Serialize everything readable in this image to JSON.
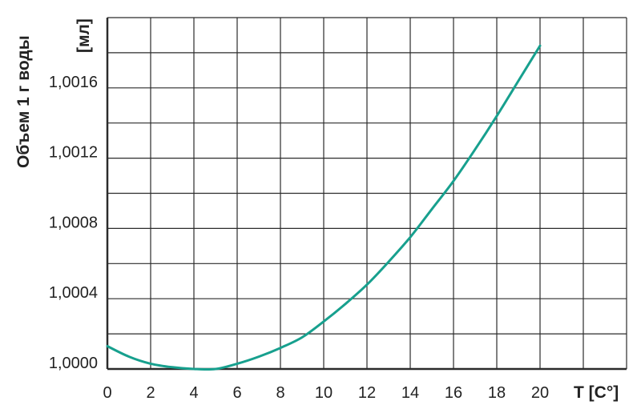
{
  "chart_data": {
    "type": "line",
    "xlabel": "T [С°]",
    "ylabel": "Объем 1 г воды",
    "yunit": "[мл]",
    "xlim": [
      0,
      24
    ],
    "ylim": [
      1.0,
      1.002
    ],
    "xticks": [
      0,
      2,
      4,
      6,
      8,
      10,
      12,
      14,
      16,
      18,
      20
    ],
    "xtick_labels": [
      "0",
      "2",
      "4",
      "6",
      "8",
      "10",
      "12",
      "14",
      "16",
      "18",
      "20"
    ],
    "yticks": [
      1.0,
      1.0004,
      1.0008,
      1.0012,
      1.0016
    ],
    "ytick_labels": [
      "1,0000",
      "1,0004",
      "1,0008",
      "1,0012",
      "1,0016"
    ],
    "grid": true,
    "colors": {
      "line": "#17a08e",
      "grid": "#2b2b2b"
    },
    "series": [
      {
        "x": [
          0,
          1,
          2,
          3,
          4,
          5,
          6,
          7,
          8,
          9,
          10,
          11,
          12,
          13,
          14,
          15,
          16,
          17,
          18,
          19,
          20
        ],
        "values": [
          1.00013,
          1.00007,
          1.00003,
          1.00001,
          1.0,
          1.0,
          1.00003,
          1.00007,
          1.00012,
          1.00018,
          1.00027,
          1.00037,
          1.00048,
          1.00061,
          1.00075,
          1.00091,
          1.00107,
          1.00125,
          1.00144,
          1.00164,
          1.00184
        ]
      }
    ]
  }
}
